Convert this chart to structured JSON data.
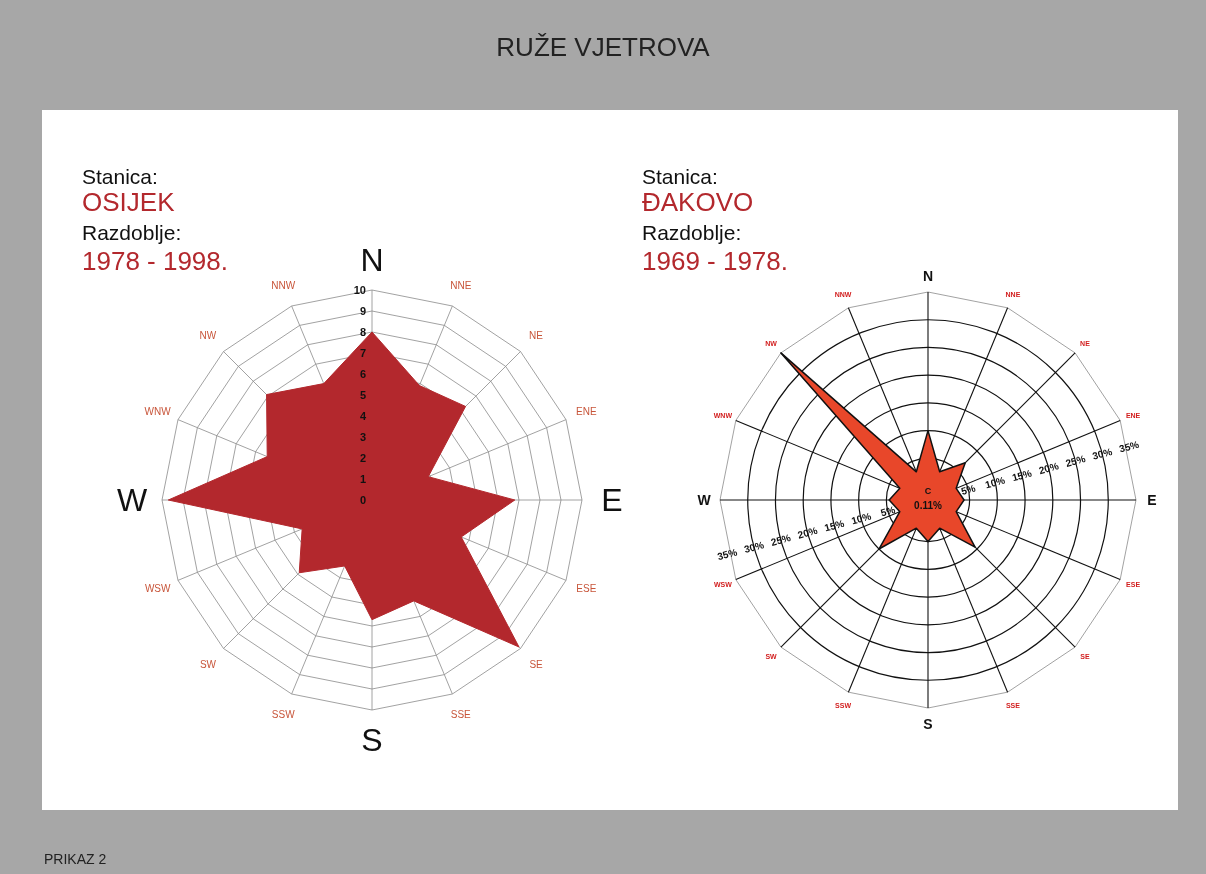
{
  "chart_data": [
    {
      "type": "radar",
      "title": "RUŽE VJETROVA",
      "categories": [
        "N",
        "NNE",
        "NE",
        "ENE",
        "E",
        "ESE",
        "SE",
        "SSE",
        "S",
        "SSW",
        "SW",
        "WSW",
        "W",
        "WNW",
        "NW",
        "NNW"
      ],
      "series": [
        {
          "color": "#b3282d",
          "values": [
            8.0,
            5.9,
            6.3,
            2.9,
            6.8,
            4.6,
            9.9,
            5.2,
            5.7,
            3.4,
            4.9,
            3.6,
            9.7,
            5.4,
            7.1,
            6.0
          ]
        }
      ],
      "ylim": [
        0,
        10
      ],
      "yticks": [
        0,
        1,
        2,
        3,
        4,
        5,
        6,
        7,
        8,
        9,
        10
      ],
      "grid": true,
      "annotations": [
        "Stanica:",
        "OSIJEK",
        "Razdoblje:",
        "1978 - 1998.",
        "PRIKAZ 2"
      ]
    },
    {
      "type": "radar",
      "categories": [
        "N",
        "NNE",
        "NE",
        "ENE",
        "E",
        "ESE",
        "SE",
        "SSE",
        "S",
        "SSW",
        "SW",
        "WSW",
        "W",
        "WNW",
        "NW",
        "NNW"
      ],
      "series": [
        {
          "color": "#e8472a",
          "values": [
            10,
            3,
            7,
            3,
            4,
            3,
            9.5,
            3,
            5,
            3,
            10,
            3,
            4.5,
            3,
            35,
            3
          ]
        }
      ],
      "ylim": [
        -2.5,
        35
      ],
      "yticks": [
        {
          "value": 5,
          "label": "5%"
        },
        {
          "value": 10,
          "label": "10%"
        },
        {
          "value": 15,
          "label": "15%"
        },
        {
          "value": 20,
          "label": "20%"
        },
        {
          "value": 25,
          "label": "25%"
        },
        {
          "value": 30,
          "label": "30%"
        },
        {
          "value": 35,
          "label": "35%"
        }
      ],
      "grid": true,
      "annotations": [
        "Stanica:",
        "ĐAKOVO",
        "Razdoblje:",
        "1969 - 1978.",
        "C",
        "0.11%"
      ]
    }
  ]
}
